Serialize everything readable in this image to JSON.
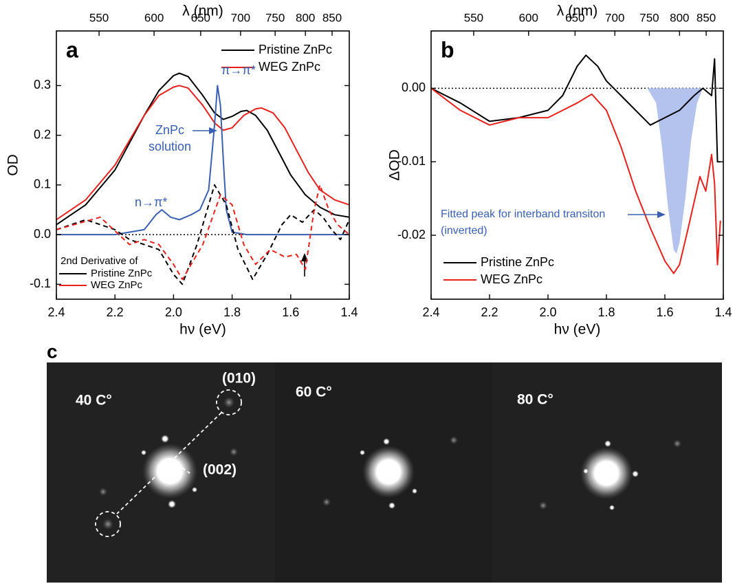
{
  "chart_data": [
    {
      "type": "line",
      "panel_label": "a",
      "xlabel": "hν (eV)",
      "x2label": "λ (nm)",
      "ylabel": "OD",
      "xlim": [
        2.4,
        1.4
      ],
      "xticks": [
        2.4,
        2.2,
        {
          "value": 2.0,
          "label": "2.0"
        },
        1.8,
        1.6,
        1.4
      ],
      "x2ticks": [
        550,
        600,
        650,
        700,
        750,
        800,
        850
      ],
      "ylim": [
        -0.13,
        0.41
      ],
      "yticks": [
        -0.1,
        {
          "value": 0,
          "label": "0.0"
        },
        0.1,
        0.2,
        0.3
      ],
      "reference_line": 0,
      "legend_title": "2nd Derivative of",
      "series": [
        {
          "name": "Pristine ZnPc",
          "color": "#000000",
          "legend": "upper right",
          "x": [
            2.4,
            2.3,
            2.2,
            2.1,
            2.05,
            2.0,
            1.98,
            1.95,
            1.9,
            1.86,
            1.83,
            1.8,
            1.77,
            1.75,
            1.72,
            1.68,
            1.64,
            1.6,
            1.55,
            1.5,
            1.45,
            1.4
          ],
          "values": [
            0.02,
            0.06,
            0.13,
            0.24,
            0.29,
            0.32,
            0.325,
            0.318,
            0.28,
            0.245,
            0.232,
            0.238,
            0.248,
            0.25,
            0.24,
            0.21,
            0.165,
            0.12,
            0.08,
            0.055,
            0.04,
            0.035
          ]
        },
        {
          "name": "WEG ZnPc",
          "color": "#e8201c",
          "legend": "upper right",
          "x": [
            2.4,
            2.3,
            2.2,
            2.1,
            2.05,
            2.0,
            1.98,
            1.95,
            1.9,
            1.86,
            1.83,
            1.8,
            1.76,
            1.72,
            1.7,
            1.66,
            1.62,
            1.58,
            1.54,
            1.5,
            1.45,
            1.4
          ],
          "values": [
            0.03,
            0.07,
            0.14,
            0.24,
            0.28,
            0.297,
            0.3,
            0.295,
            0.26,
            0.225,
            0.21,
            0.215,
            0.24,
            0.253,
            0.255,
            0.245,
            0.215,
            0.17,
            0.125,
            0.09,
            0.07,
            0.06
          ]
        },
        {
          "color": "#3a5fb0",
          "x": [
            2.4,
            2.2,
            2.1,
            2.06,
            2.04,
            2.01,
            1.98,
            1.94,
            1.91,
            1.88,
            1.86,
            1.85,
            1.84,
            1.83,
            1.82,
            1.8,
            1.75,
            1.6,
            1.4
          ],
          "values": [
            0.0,
            0.0,
            0.01,
            0.04,
            0.05,
            0.035,
            0.03,
            0.04,
            0.05,
            0.09,
            0.22,
            0.3,
            0.26,
            0.15,
            0.05,
            0.005,
            0.0,
            0.0,
            0.0
          ]
        },
        {
          "name": "Pristine ZnPc",
          "color": "#000000",
          "dash": true,
          "legend": "lower left",
          "x": [
            2.4,
            2.3,
            2.2,
            2.15,
            2.1,
            2.05,
            2.0,
            1.97,
            1.92,
            1.86,
            1.82,
            1.78,
            1.73,
            1.68,
            1.63,
            1.6,
            1.56,
            1.52,
            1.49,
            1.46,
            1.43,
            1.4
          ],
          "values": [
            0.01,
            0.03,
            0.01,
            -0.01,
            -0.02,
            -0.03,
            -0.08,
            -0.1,
            -0.02,
            0.1,
            0.06,
            -0.03,
            -0.09,
            -0.04,
            0.02,
            0.04,
            0.025,
            0.05,
            0.035,
            0.01,
            -0.01,
            0.03
          ]
        },
        {
          "name": "WEG ZnPc",
          "color": "#e8201c",
          "dash": true,
          "legend": "lower left",
          "x": [
            2.4,
            2.25,
            2.15,
            2.1,
            2.05,
            2.0,
            1.97,
            1.9,
            1.84,
            1.8,
            1.76,
            1.72,
            1.67,
            1.62,
            1.58,
            1.55,
            1.52,
            1.5,
            1.47,
            1.44,
            1.4
          ],
          "values": [
            0.01,
            0.035,
            -0.02,
            -0.01,
            -0.02,
            -0.06,
            -0.09,
            -0.02,
            0.08,
            0.06,
            -0.02,
            -0.06,
            -0.03,
            -0.045,
            -0.04,
            -0.07,
            0.05,
            0.1,
            0.05,
            0.02,
            0.0
          ]
        }
      ],
      "annotations": [
        {
          "text": [
            "π→π*"
          ]
        },
        {
          "text": [
            "ZnPc",
            "solution"
          ]
        },
        {
          "text": [
            "n→π*"
          ]
        }
      ]
    },
    {
      "type": "line",
      "panel_label": "b",
      "xlabel": "hν (eV)",
      "x2label": "λ (nm)",
      "ylabel": "ΔOD",
      "xlim": [
        2.4,
        1.4
      ],
      "xticks": [
        2.4,
        2.2,
        {
          "value": 2.0,
          "label": "2.0"
        },
        1.8,
        1.6,
        1.4
      ],
      "x2ticks": [
        550,
        600,
        650,
        700,
        750,
        800,
        850
      ],
      "ylim": [
        -0.0287,
        0.0078
      ],
      "yticks": [
        {
          "value": -0.02,
          "label": "-0.02"
        },
        {
          "value": -0.01,
          "label": "-0.01"
        },
        {
          "value": 0,
          "label": "0.00"
        }
      ],
      "reference_line": 0,
      "series": [
        {
          "color": "#b4c3ee",
          "fill": true,
          "x": [
            1.66,
            1.63,
            1.61,
            1.59,
            1.57,
            1.56,
            1.55,
            1.53,
            1.51,
            1.49,
            1.47
          ],
          "values": [
            0.0,
            -0.002,
            -0.008,
            -0.016,
            -0.022,
            -0.0225,
            -0.021,
            -0.015,
            -0.007,
            -0.002,
            0.0
          ]
        },
        {
          "name": "Pristine ZnPc",
          "color": "#000000",
          "legend": "lower left",
          "x": [
            2.4,
            2.3,
            2.2,
            2.1,
            2.0,
            1.95,
            1.9,
            1.87,
            1.83,
            1.8,
            1.75,
            1.7,
            1.65,
            1.6,
            1.55,
            1.5,
            1.47,
            1.44,
            1.43,
            1.42,
            1.41
          ],
          "values": [
            0.0,
            -0.002,
            -0.0045,
            -0.004,
            -0.003,
            -0.001,
            0.003,
            0.0045,
            0.003,
            0.001,
            -0.001,
            -0.003,
            -0.005,
            -0.004,
            -0.003,
            -0.001,
            0.0,
            -0.001,
            0.004,
            -0.01,
            -0.01
          ]
        },
        {
          "name": "WEG ZnPc",
          "color": "#e8201c",
          "legend": "lower left",
          "x": [
            2.4,
            2.3,
            2.2,
            2.1,
            2.0,
            1.95,
            1.9,
            1.85,
            1.8,
            1.75,
            1.7,
            1.65,
            1.6,
            1.57,
            1.55,
            1.52,
            1.48,
            1.46,
            1.44,
            1.43,
            1.42,
            1.41
          ],
          "values": [
            0.0,
            -0.003,
            -0.005,
            -0.004,
            -0.004,
            -0.003,
            -0.002,
            -0.0008,
            -0.003,
            -0.008,
            -0.014,
            -0.019,
            -0.0235,
            -0.0252,
            -0.024,
            -0.019,
            -0.012,
            -0.014,
            -0.009,
            -0.013,
            -0.024,
            -0.018
          ]
        }
      ],
      "annotations": [
        {
          "text": [
            "Fitted peak for interband transiton",
            "(inverted)"
          ]
        }
      ]
    }
  ],
  "panel_c": {
    "label": "c",
    "images": [
      {
        "label": "40 C°"
      },
      {
        "label": "60 C°"
      },
      {
        "label": "80 C°"
      }
    ],
    "annotations": [
      "(010)",
      "(002)"
    ]
  }
}
